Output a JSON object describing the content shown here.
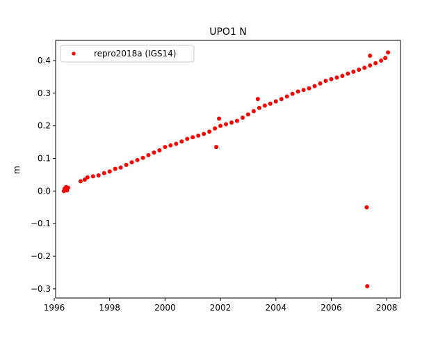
{
  "chart_data": {
    "type": "scatter",
    "title": "UPO1 N",
    "xlabel": "",
    "ylabel": "m",
    "xlim": [
      1996.05,
      2008.5
    ],
    "ylim": [
      -0.328,
      0.462
    ],
    "x_ticks": [
      1996,
      1998,
      2000,
      2002,
      2004,
      2006,
      2008
    ],
    "x_tick_labels": [
      "1996",
      "1998",
      "2000",
      "2002",
      "2004",
      "2006",
      "2008"
    ],
    "y_ticks": [
      -0.3,
      -0.2,
      -0.1,
      0.0,
      0.1,
      0.2,
      0.3,
      0.4
    ],
    "y_tick_labels": [
      "−0.3",
      "−0.2",
      "−0.1",
      "0.0",
      "0.1",
      "0.2",
      "0.3",
      "0.4"
    ],
    "grid": false,
    "legend_position": "top-left",
    "series": [
      {
        "name": "repro2018a (IGS14)",
        "color": "#ff0000",
        "marker": "circle",
        "points": [
          [
            1996.35,
            0.0
          ],
          [
            1996.38,
            0.008
          ],
          [
            1996.4,
            0.004
          ],
          [
            1996.43,
            0.012
          ],
          [
            1996.46,
            0.002
          ],
          [
            1996.5,
            0.01
          ],
          [
            1996.95,
            0.03
          ],
          [
            1997.1,
            0.035
          ],
          [
            1997.2,
            0.042
          ],
          [
            1997.4,
            0.045
          ],
          [
            1997.6,
            0.048
          ],
          [
            1997.8,
            0.055
          ],
          [
            1998.0,
            0.06
          ],
          [
            1998.2,
            0.068
          ],
          [
            1998.4,
            0.072
          ],
          [
            1998.6,
            0.08
          ],
          [
            1998.8,
            0.088
          ],
          [
            1999.0,
            0.095
          ],
          [
            1999.2,
            0.102
          ],
          [
            1999.4,
            0.11
          ],
          [
            1999.6,
            0.118
          ],
          [
            1999.8,
            0.125
          ],
          [
            2000.0,
            0.135
          ],
          [
            2000.2,
            0.14
          ],
          [
            2000.4,
            0.145
          ],
          [
            2000.6,
            0.152
          ],
          [
            2000.8,
            0.16
          ],
          [
            2001.0,
            0.165
          ],
          [
            2001.2,
            0.17
          ],
          [
            2001.4,
            0.175
          ],
          [
            2001.6,
            0.182
          ],
          [
            2001.8,
            0.192
          ],
          [
            2002.0,
            0.2
          ],
          [
            2002.2,
            0.205
          ],
          [
            2002.4,
            0.21
          ],
          [
            2002.6,
            0.215
          ],
          [
            2002.8,
            0.225
          ],
          [
            2003.0,
            0.235
          ],
          [
            2003.2,
            0.245
          ],
          [
            2003.4,
            0.255
          ],
          [
            2003.6,
            0.262
          ],
          [
            2003.8,
            0.268
          ],
          [
            2004.0,
            0.275
          ],
          [
            2004.2,
            0.282
          ],
          [
            2004.4,
            0.29
          ],
          [
            2004.6,
            0.298
          ],
          [
            2004.8,
            0.305
          ],
          [
            2005.0,
            0.31
          ],
          [
            2005.2,
            0.315
          ],
          [
            2005.4,
            0.322
          ],
          [
            2005.6,
            0.33
          ],
          [
            2005.8,
            0.338
          ],
          [
            2006.0,
            0.343
          ],
          [
            2006.2,
            0.348
          ],
          [
            2006.4,
            0.353
          ],
          [
            2006.6,
            0.36
          ],
          [
            2006.8,
            0.366
          ],
          [
            2007.0,
            0.372
          ],
          [
            2007.2,
            0.378
          ],
          [
            2007.4,
            0.385
          ],
          [
            2007.6,
            0.392
          ],
          [
            2007.8,
            0.4
          ],
          [
            2007.95,
            0.408
          ],
          [
            2008.05,
            0.425
          ],
          [
            2001.85,
            0.135
          ],
          [
            2001.95,
            0.222
          ],
          [
            2003.35,
            0.282
          ],
          [
            2007.28,
            -0.05
          ],
          [
            2007.3,
            -0.292
          ],
          [
            2007.4,
            0.415
          ]
        ]
      }
    ]
  }
}
